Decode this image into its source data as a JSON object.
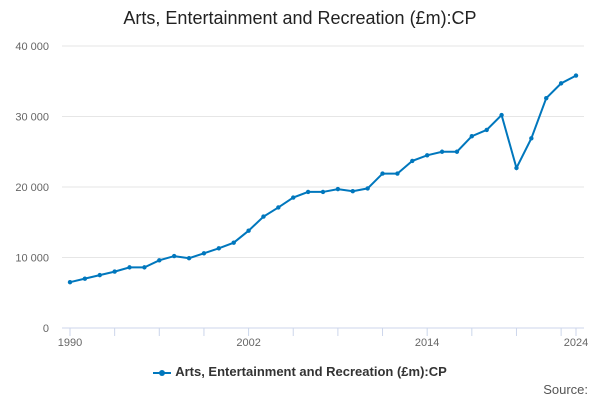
{
  "chart_data": {
    "type": "line",
    "title": "Arts, Entertainment and Recreation (£m):CP",
    "xlabel": "",
    "ylabel": "",
    "ylim": [
      0,
      40000
    ],
    "yticks": [
      "0",
      "10 000",
      "20 000",
      "30 000",
      "40 000"
    ],
    "xtick_labels": [
      "1990",
      "2002",
      "2014",
      "2024"
    ],
    "grid": true,
    "legend": "bottom-center",
    "color": "#0077bd",
    "series": [
      {
        "name": "Arts, Entertainment and Recreation (£m):CP",
        "x": [
          1990,
          1991,
          1992,
          1993,
          1994,
          1995,
          1996,
          1997,
          1998,
          1999,
          2000,
          2001,
          2002,
          2003,
          2004,
          2005,
          2006,
          2007,
          2008,
          2009,
          2010,
          2011,
          2012,
          2013,
          2014,
          2015,
          2016,
          2017,
          2018,
          2019,
          2020,
          2021,
          2022,
          2023,
          2024
        ],
        "values": [
          6500,
          7000,
          7500,
          8000,
          8600,
          8600,
          9600,
          10200,
          9900,
          10600,
          11300,
          12100,
          13800,
          15800,
          17100,
          18500,
          19300,
          19300,
          19700,
          19400,
          19800,
          21900,
          21900,
          23700,
          24500,
          25000,
          25000,
          27200,
          28100,
          30200,
          22700,
          26900,
          32600,
          34700,
          35800
        ]
      }
    ]
  },
  "footer": {
    "source_label": "Source:"
  }
}
